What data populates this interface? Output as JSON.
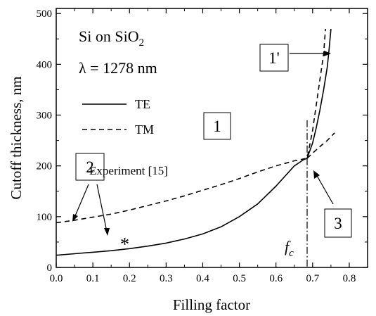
{
  "chart_data": {
    "type": "line",
    "xlabel": "Filling factor",
    "ylabel": "Cutoff thickness, nm",
    "xlim": [
      0.0,
      0.85
    ],
    "ylim": [
      0,
      510
    ],
    "x_ticks": [
      "0.0",
      "0.1",
      "0.2",
      "0.3",
      "0.4",
      "0.5",
      "0.6",
      "0.7",
      "0.8"
    ],
    "y_ticks": [
      "0",
      "100",
      "200",
      "300",
      "400",
      "500"
    ],
    "grid": false,
    "legend_position": "upper-left",
    "annotations": {
      "material_base": "Si on SiO",
      "material_sub": "2",
      "wavelength": "λ = 1278 nm",
      "fc_base": "f",
      "fc_sub": "c",
      "fc_value": 0.685,
      "region_1": "1",
      "region_1prime": "1'",
      "region_2": "2",
      "region_3": "3",
      "experiment_label": "Experiment [15]"
    },
    "series": [
      {
        "name": "TE",
        "style": "solid",
        "x": [
          0.0,
          0.05,
          0.1,
          0.15,
          0.2,
          0.25,
          0.3,
          0.35,
          0.4,
          0.45,
          0.5,
          0.55,
          0.6,
          0.625,
          0.65,
          0.675,
          0.685,
          0.7,
          0.71,
          0.72,
          0.73,
          0.74,
          0.745,
          0.75
        ],
        "y": [
          24,
          27,
          30,
          33,
          37,
          42,
          48,
          56,
          66,
          80,
          100,
          125,
          160,
          180,
          200,
          212,
          215,
          245,
          275,
          310,
          350,
          395,
          430,
          470
        ]
      },
      {
        "name": "TM",
        "style": "dashed",
        "x": [
          0.0,
          0.05,
          0.1,
          0.15,
          0.2,
          0.25,
          0.3,
          0.35,
          0.4,
          0.45,
          0.5,
          0.55,
          0.6,
          0.65,
          0.685,
          0.7,
          0.71,
          0.72,
          0.73,
          0.735
        ],
        "y": [
          88,
          93,
          99,
          105,
          113,
          122,
          131,
          141,
          152,
          163,
          175,
          188,
          200,
          210,
          215,
          270,
          320,
          370,
          420,
          470
        ]
      },
      {
        "name": "TM continuation",
        "style": "dashed",
        "x": [
          0.685,
          0.7,
          0.72,
          0.74,
          0.76
        ],
        "y": [
          215,
          225,
          238,
          250,
          265
        ]
      },
      {
        "name": "Experiment [15]",
        "style": "marker",
        "x": [
          0.187
        ],
        "y": [
          52
        ]
      }
    ]
  }
}
